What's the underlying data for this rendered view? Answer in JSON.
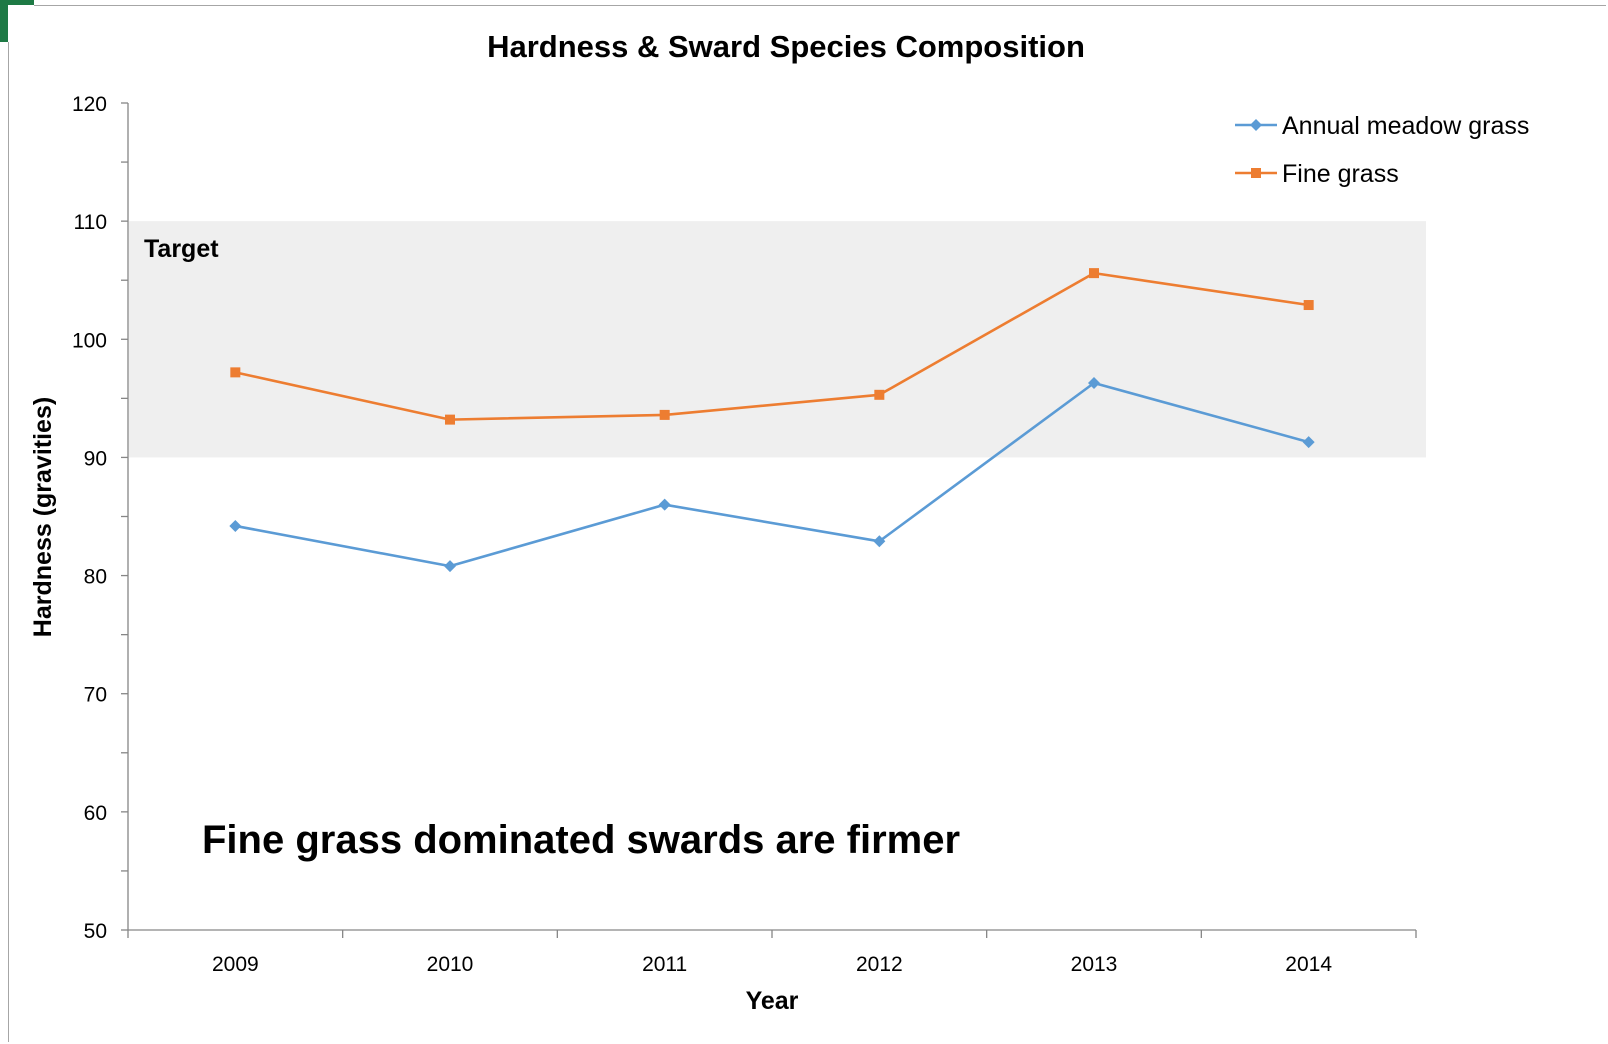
{
  "chart_data": {
    "type": "line",
    "title": "Hardness & Sward Species Composition",
    "xlabel": "Year",
    "ylabel": "Hardness (gravities)",
    "ylim": [
      50,
      120
    ],
    "y_ticks": [
      "50",
      "60",
      "70",
      "80",
      "90",
      "100",
      "110",
      "120"
    ],
    "categories": [
      "2009",
      "2010",
      "2011",
      "2012",
      "2013",
      "2014"
    ],
    "series": [
      {
        "name": "Annual meadow grass",
        "color": "#5b9bd5",
        "marker": "diamond",
        "values": [
          84.2,
          80.8,
          86.0,
          82.9,
          96.3,
          91.3
        ]
      },
      {
        "name": "Fine grass",
        "color": "#ed7d31",
        "marker": "square",
        "values": [
          97.2,
          93.2,
          93.6,
          95.3,
          105.6,
          102.9
        ]
      }
    ],
    "target_band": {
      "label": "Target",
      "from": 90,
      "to": 110,
      "color": "#efefef"
    },
    "annotation": "Fine grass dominated swards are firmer",
    "legend_position": "top-right",
    "grid": false
  }
}
